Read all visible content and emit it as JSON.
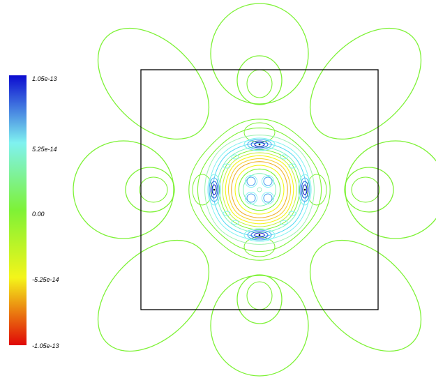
{
  "chart_data": {
    "type": "contour",
    "title": "",
    "colorbar": {
      "ticks": [
        "1.05e-13",
        "5.25e-14",
        "0.00",
        "-5.25e-14",
        "-1.05e-13"
      ],
      "max": 1.05e-13,
      "min": -1.05e-13,
      "colors": [
        "#0b0bd0",
        "#7ff2f0",
        "#7ef236",
        "#f4f51a",
        "#e00707"
      ]
    },
    "levels": {
      "outer": 0.0,
      "mid": 0.0,
      "center": -5.25e-14,
      "blue_maxima": 1.05e-13
    },
    "legend_position": "left",
    "grid": false,
    "frame": true,
    "symmetry": "4-fold"
  }
}
